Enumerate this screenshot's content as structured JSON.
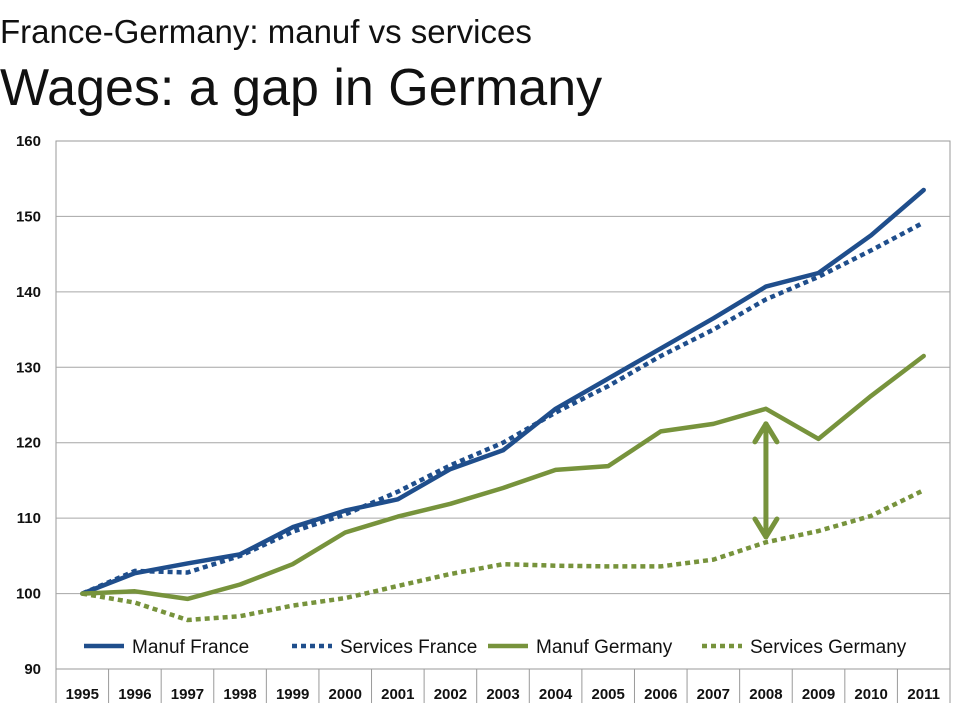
{
  "subtitle": "France-Germany: manuf vs services",
  "title": "Wages: a gap in Germany",
  "chart_data": {
    "type": "line",
    "title": "Wages: a gap in Germany",
    "subtitle": "France-Germany: manuf vs services",
    "x": [
      "1995",
      "1996",
      "1997",
      "1998",
      "1999",
      "2000",
      "2001",
      "2002",
      "2003",
      "2004",
      "2005",
      "2006",
      "2007",
      "2008",
      "2009",
      "2010",
      "2011"
    ],
    "ylim": [
      90,
      160
    ],
    "yticks": [
      90,
      100,
      110,
      120,
      130,
      140,
      150,
      160
    ],
    "grid": true,
    "legend_position": "bottom",
    "series": [
      {
        "name": "Manuf France",
        "style": "solid",
        "color": "#1f4e8c",
        "values": [
          100,
          102.7,
          104.0,
          105.2,
          108.8,
          111.0,
          112.5,
          116.5,
          119.0,
          124.5,
          128.5,
          132.5,
          136.5,
          140.7,
          142.5,
          147.5,
          153.5
        ]
      },
      {
        "name": "Services France",
        "style": "dotted",
        "color": "#1f4e8c",
        "values": [
          100,
          103.0,
          102.8,
          105.0,
          108.2,
          110.5,
          113.5,
          117.0,
          120.0,
          124.0,
          127.5,
          131.5,
          135.0,
          139.0,
          142.0,
          145.5,
          149.2
        ]
      },
      {
        "name": "Manuf Germany",
        "style": "solid",
        "color": "#77933c",
        "values": [
          100,
          100.3,
          99.3,
          101.2,
          103.9,
          108.1,
          110.2,
          111.9,
          114.0,
          116.4,
          116.9,
          121.5,
          122.5,
          124.5,
          120.5,
          126.2,
          131.5
        ]
      },
      {
        "name": "Services Germany",
        "style": "dotted",
        "color": "#77933c",
        "values": [
          100,
          98.8,
          96.5,
          97.0,
          98.4,
          99.4,
          101.0,
          102.6,
          103.9,
          103.7,
          103.6,
          103.6,
          104.5,
          106.8,
          108.3,
          110.3,
          113.7
        ]
      }
    ],
    "annotations": [
      {
        "type": "double-arrow",
        "x": "2008",
        "y_from": 107.5,
        "y_to": 122.5,
        "color": "#77933c"
      }
    ]
  }
}
